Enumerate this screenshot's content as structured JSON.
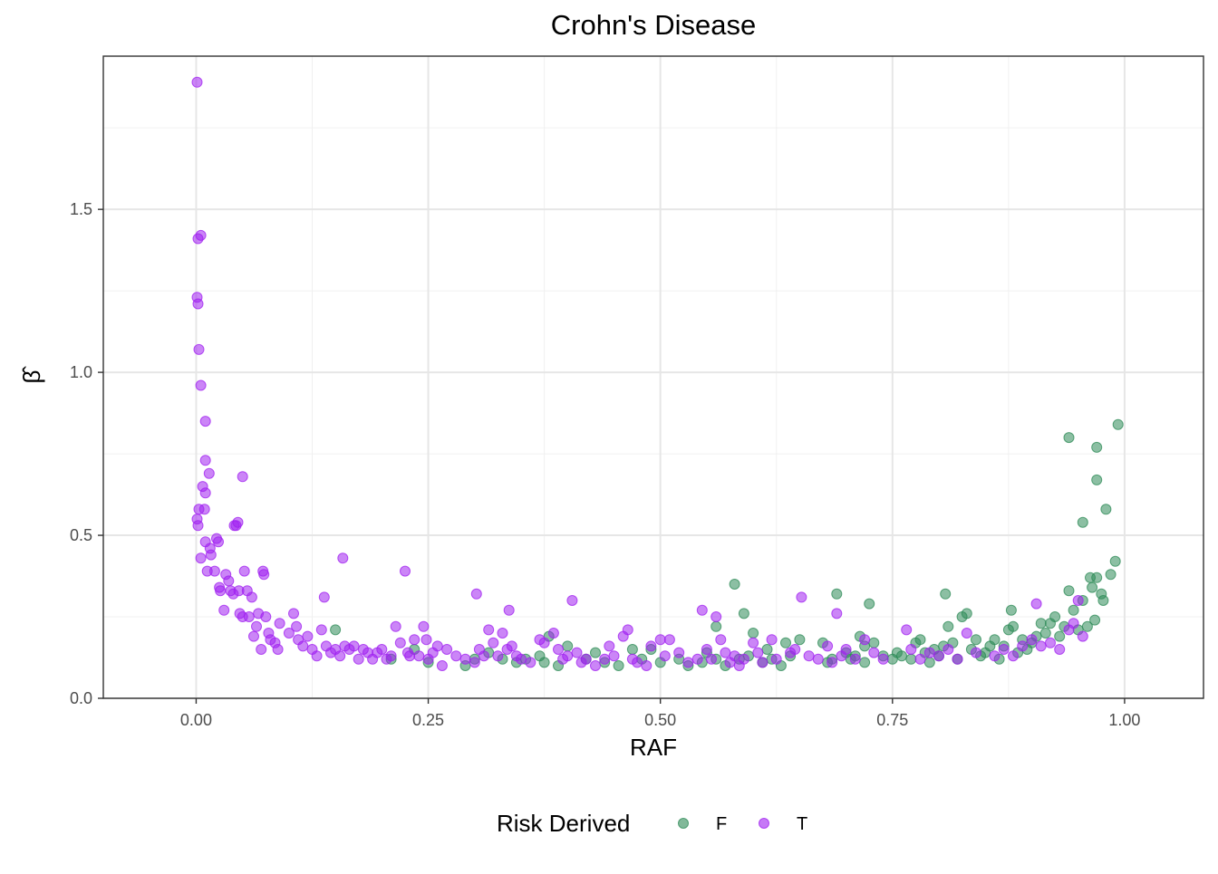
{
  "chart_data": {
    "type": "scatter",
    "title": "Crohn's Disease",
    "xlabel": "RAF",
    "ylabel": "β̂",
    "xlim": [
      -0.1,
      1.085
    ],
    "ylim": [
      0,
      1.97
    ],
    "x_ticks": [
      0,
      0.25,
      0.5,
      0.75,
      1.0
    ],
    "x_tick_labels": [
      "0.00",
      "0.25",
      "0.50",
      "0.75",
      "1.00"
    ],
    "y_ticks": [
      0,
      0.5,
      1.0,
      1.5
    ],
    "y_tick_labels": [
      "0.0",
      "0.5",
      "1.0",
      "1.5"
    ],
    "grid": true,
    "legend": {
      "title": "Risk Derived",
      "position": "bottom",
      "entries": [
        {
          "label": "F",
          "color": "#2e8b57"
        },
        {
          "label": "T",
          "color": "#a020f0"
        }
      ]
    },
    "series": [
      {
        "name": "F",
        "color": "#2e8b57",
        "points": [
          [
            0.15,
            0.21
          ],
          [
            0.21,
            0.12
          ],
          [
            0.235,
            0.15
          ],
          [
            0.25,
            0.11
          ],
          [
            0.29,
            0.1
          ],
          [
            0.3,
            0.12
          ],
          [
            0.315,
            0.14
          ],
          [
            0.33,
            0.12
          ],
          [
            0.345,
            0.11
          ],
          [
            0.355,
            0.12
          ],
          [
            0.37,
            0.13
          ],
          [
            0.375,
            0.11
          ],
          [
            0.38,
            0.19
          ],
          [
            0.39,
            0.1
          ],
          [
            0.4,
            0.16
          ],
          [
            0.42,
            0.12
          ],
          [
            0.43,
            0.14
          ],
          [
            0.44,
            0.11
          ],
          [
            0.455,
            0.1
          ],
          [
            0.47,
            0.15
          ],
          [
            0.48,
            0.12
          ],
          [
            0.49,
            0.15
          ],
          [
            0.5,
            0.11
          ],
          [
            0.52,
            0.12
          ],
          [
            0.53,
            0.1
          ],
          [
            0.545,
            0.11
          ],
          [
            0.55,
            0.14
          ],
          [
            0.56,
            0.22
          ],
          [
            0.56,
            0.12
          ],
          [
            0.57,
            0.1
          ],
          [
            0.58,
            0.35
          ],
          [
            0.585,
            0.12
          ],
          [
            0.59,
            0.26
          ],
          [
            0.595,
            0.13
          ],
          [
            0.6,
            0.2
          ],
          [
            0.61,
            0.11
          ],
          [
            0.615,
            0.15
          ],
          [
            0.62,
            0.12
          ],
          [
            0.63,
            0.1
          ],
          [
            0.635,
            0.17
          ],
          [
            0.64,
            0.13
          ],
          [
            0.65,
            0.18
          ],
          [
            0.675,
            0.17
          ],
          [
            0.68,
            0.11
          ],
          [
            0.685,
            0.12
          ],
          [
            0.69,
            0.32
          ],
          [
            0.7,
            0.14
          ],
          [
            0.705,
            0.12
          ],
          [
            0.71,
            0.13
          ],
          [
            0.715,
            0.19
          ],
          [
            0.72,
            0.16
          ],
          [
            0.72,
            0.11
          ],
          [
            0.725,
            0.29
          ],
          [
            0.73,
            0.17
          ],
          [
            0.74,
            0.13
          ],
          [
            0.75,
            0.12
          ],
          [
            0.755,
            0.14
          ],
          [
            0.76,
            0.13
          ],
          [
            0.77,
            0.12
          ],
          [
            0.775,
            0.17
          ],
          [
            0.78,
            0.18
          ],
          [
            0.785,
            0.14
          ],
          [
            0.79,
            0.11
          ],
          [
            0.795,
            0.15
          ],
          [
            0.8,
            0.13
          ],
          [
            0.805,
            0.16
          ],
          [
            0.807,
            0.32
          ],
          [
            0.81,
            0.22
          ],
          [
            0.815,
            0.17
          ],
          [
            0.82,
            0.12
          ],
          [
            0.825,
            0.25
          ],
          [
            0.83,
            0.26
          ],
          [
            0.835,
            0.15
          ],
          [
            0.84,
            0.18
          ],
          [
            0.845,
            0.13
          ],
          [
            0.85,
            0.14
          ],
          [
            0.855,
            0.16
          ],
          [
            0.86,
            0.18
          ],
          [
            0.865,
            0.12
          ],
          [
            0.87,
            0.16
          ],
          [
            0.875,
            0.21
          ],
          [
            0.878,
            0.27
          ],
          [
            0.88,
            0.22
          ],
          [
            0.885,
            0.14
          ],
          [
            0.89,
            0.18
          ],
          [
            0.895,
            0.15
          ],
          [
            0.9,
            0.17
          ],
          [
            0.905,
            0.19
          ],
          [
            0.91,
            0.23
          ],
          [
            0.915,
            0.2
          ],
          [
            0.92,
            0.23
          ],
          [
            0.925,
            0.25
          ],
          [
            0.93,
            0.19
          ],
          [
            0.935,
            0.22
          ],
          [
            0.94,
            0.33
          ],
          [
            0.94,
            0.8
          ],
          [
            0.945,
            0.27
          ],
          [
            0.95,
            0.21
          ],
          [
            0.955,
            0.3
          ],
          [
            0.955,
            0.54
          ],
          [
            0.96,
            0.22
          ],
          [
            0.963,
            0.37
          ],
          [
            0.965,
            0.34
          ],
          [
            0.97,
            0.77
          ],
          [
            0.97,
            0.67
          ],
          [
            0.97,
            0.37
          ],
          [
            0.968,
            0.24
          ],
          [
            0.975,
            0.32
          ],
          [
            0.977,
            0.3
          ],
          [
            0.98,
            0.58
          ],
          [
            0.985,
            0.38
          ],
          [
            0.99,
            0.42
          ],
          [
            0.993,
            0.84
          ]
        ]
      },
      {
        "name": "T",
        "color": "#a020f0",
        "points": [
          [
            0.001,
            1.89
          ],
          [
            0.002,
            1.41
          ],
          [
            0.005,
            1.42
          ],
          [
            0.001,
            1.23
          ],
          [
            0.002,
            1.21
          ],
          [
            0.003,
            1.07
          ],
          [
            0.005,
            0.96
          ],
          [
            0.01,
            0.85
          ],
          [
            0.01,
            0.73
          ],
          [
            0.014,
            0.69
          ],
          [
            0.007,
            0.65
          ],
          [
            0.01,
            0.63
          ],
          [
            0.009,
            0.58
          ],
          [
            0.003,
            0.58
          ],
          [
            0.001,
            0.55
          ],
          [
            0.002,
            0.53
          ],
          [
            0.005,
            0.43
          ],
          [
            0.01,
            0.48
          ],
          [
            0.015,
            0.46
          ],
          [
            0.016,
            0.44
          ],
          [
            0.012,
            0.39
          ],
          [
            0.02,
            0.39
          ],
          [
            0.022,
            0.49
          ],
          [
            0.024,
            0.48
          ],
          [
            0.025,
            0.34
          ],
          [
            0.026,
            0.33
          ],
          [
            0.03,
            0.27
          ],
          [
            0.032,
            0.38
          ],
          [
            0.035,
            0.36
          ],
          [
            0.037,
            0.33
          ],
          [
            0.04,
            0.32
          ],
          [
            0.041,
            0.53
          ],
          [
            0.043,
            0.53
          ],
          [
            0.045,
            0.54
          ],
          [
            0.046,
            0.33
          ],
          [
            0.047,
            0.26
          ],
          [
            0.05,
            0.25
          ],
          [
            0.05,
            0.68
          ],
          [
            0.052,
            0.39
          ],
          [
            0.055,
            0.33
          ],
          [
            0.057,
            0.25
          ],
          [
            0.06,
            0.31
          ],
          [
            0.062,
            0.19
          ],
          [
            0.065,
            0.22
          ],
          [
            0.067,
            0.26
          ],
          [
            0.07,
            0.15
          ],
          [
            0.072,
            0.39
          ],
          [
            0.073,
            0.38
          ],
          [
            0.075,
            0.25
          ],
          [
            0.078,
            0.2
          ],
          [
            0.08,
            0.18
          ],
          [
            0.085,
            0.17
          ],
          [
            0.088,
            0.15
          ],
          [
            0.09,
            0.23
          ],
          [
            0.1,
            0.2
          ],
          [
            0.105,
            0.26
          ],
          [
            0.108,
            0.22
          ],
          [
            0.11,
            0.18
          ],
          [
            0.115,
            0.16
          ],
          [
            0.12,
            0.19
          ],
          [
            0.125,
            0.15
          ],
          [
            0.13,
            0.13
          ],
          [
            0.135,
            0.21
          ],
          [
            0.138,
            0.31
          ],
          [
            0.14,
            0.16
          ],
          [
            0.145,
            0.14
          ],
          [
            0.15,
            0.15
          ],
          [
            0.155,
            0.13
          ],
          [
            0.158,
            0.43
          ],
          [
            0.16,
            0.16
          ],
          [
            0.165,
            0.15
          ],
          [
            0.17,
            0.16
          ],
          [
            0.175,
            0.12
          ],
          [
            0.18,
            0.15
          ],
          [
            0.185,
            0.14
          ],
          [
            0.19,
            0.12
          ],
          [
            0.195,
            0.14
          ],
          [
            0.2,
            0.15
          ],
          [
            0.205,
            0.12
          ],
          [
            0.21,
            0.13
          ],
          [
            0.215,
            0.22
          ],
          [
            0.22,
            0.17
          ],
          [
            0.225,
            0.39
          ],
          [
            0.228,
            0.14
          ],
          [
            0.23,
            0.13
          ],
          [
            0.235,
            0.18
          ],
          [
            0.24,
            0.13
          ],
          [
            0.245,
            0.22
          ],
          [
            0.248,
            0.18
          ],
          [
            0.25,
            0.12
          ],
          [
            0.255,
            0.14
          ],
          [
            0.26,
            0.16
          ],
          [
            0.265,
            0.1
          ],
          [
            0.27,
            0.15
          ],
          [
            0.28,
            0.13
          ],
          [
            0.29,
            0.12
          ],
          [
            0.3,
            0.11
          ],
          [
            0.302,
            0.32
          ],
          [
            0.305,
            0.15
          ],
          [
            0.31,
            0.13
          ],
          [
            0.315,
            0.21
          ],
          [
            0.32,
            0.17
          ],
          [
            0.325,
            0.13
          ],
          [
            0.33,
            0.2
          ],
          [
            0.335,
            0.15
          ],
          [
            0.337,
            0.27
          ],
          [
            0.34,
            0.16
          ],
          [
            0.345,
            0.13
          ],
          [
            0.35,
            0.12
          ],
          [
            0.36,
            0.11
          ],
          [
            0.37,
            0.18
          ],
          [
            0.375,
            0.17
          ],
          [
            0.385,
            0.2
          ],
          [
            0.39,
            0.15
          ],
          [
            0.395,
            0.12
          ],
          [
            0.4,
            0.13
          ],
          [
            0.405,
            0.3
          ],
          [
            0.41,
            0.14
          ],
          [
            0.415,
            0.11
          ],
          [
            0.42,
            0.12
          ],
          [
            0.43,
            0.1
          ],
          [
            0.44,
            0.12
          ],
          [
            0.445,
            0.16
          ],
          [
            0.45,
            0.13
          ],
          [
            0.46,
            0.19
          ],
          [
            0.465,
            0.21
          ],
          [
            0.47,
            0.12
          ],
          [
            0.475,
            0.11
          ],
          [
            0.485,
            0.1
          ],
          [
            0.49,
            0.16
          ],
          [
            0.5,
            0.18
          ],
          [
            0.505,
            0.13
          ],
          [
            0.51,
            0.18
          ],
          [
            0.52,
            0.14
          ],
          [
            0.53,
            0.11
          ],
          [
            0.54,
            0.12
          ],
          [
            0.545,
            0.27
          ],
          [
            0.55,
            0.15
          ],
          [
            0.555,
            0.12
          ],
          [
            0.56,
            0.25
          ],
          [
            0.565,
            0.18
          ],
          [
            0.57,
            0.14
          ],
          [
            0.575,
            0.11
          ],
          [
            0.58,
            0.13
          ],
          [
            0.585,
            0.1
          ],
          [
            0.59,
            0.12
          ],
          [
            0.6,
            0.17
          ],
          [
            0.605,
            0.14
          ],
          [
            0.61,
            0.11
          ],
          [
            0.62,
            0.18
          ],
          [
            0.625,
            0.12
          ],
          [
            0.64,
            0.14
          ],
          [
            0.645,
            0.15
          ],
          [
            0.652,
            0.31
          ],
          [
            0.66,
            0.13
          ],
          [
            0.67,
            0.12
          ],
          [
            0.68,
            0.16
          ],
          [
            0.685,
            0.11
          ],
          [
            0.69,
            0.26
          ],
          [
            0.695,
            0.13
          ],
          [
            0.7,
            0.15
          ],
          [
            0.71,
            0.12
          ],
          [
            0.72,
            0.18
          ],
          [
            0.73,
            0.14
          ],
          [
            0.74,
            0.12
          ],
          [
            0.765,
            0.21
          ],
          [
            0.77,
            0.15
          ],
          [
            0.78,
            0.12
          ],
          [
            0.79,
            0.14
          ],
          [
            0.8,
            0.13
          ],
          [
            0.81,
            0.15
          ],
          [
            0.82,
            0.12
          ],
          [
            0.83,
            0.2
          ],
          [
            0.84,
            0.14
          ],
          [
            0.86,
            0.13
          ],
          [
            0.87,
            0.15
          ],
          [
            0.88,
            0.13
          ],
          [
            0.89,
            0.16
          ],
          [
            0.9,
            0.18
          ],
          [
            0.905,
            0.29
          ],
          [
            0.91,
            0.16
          ],
          [
            0.92,
            0.17
          ],
          [
            0.93,
            0.15
          ],
          [
            0.94,
            0.21
          ],
          [
            0.945,
            0.23
          ],
          [
            0.95,
            0.3
          ],
          [
            0.955,
            0.19
          ]
        ]
      }
    ]
  }
}
